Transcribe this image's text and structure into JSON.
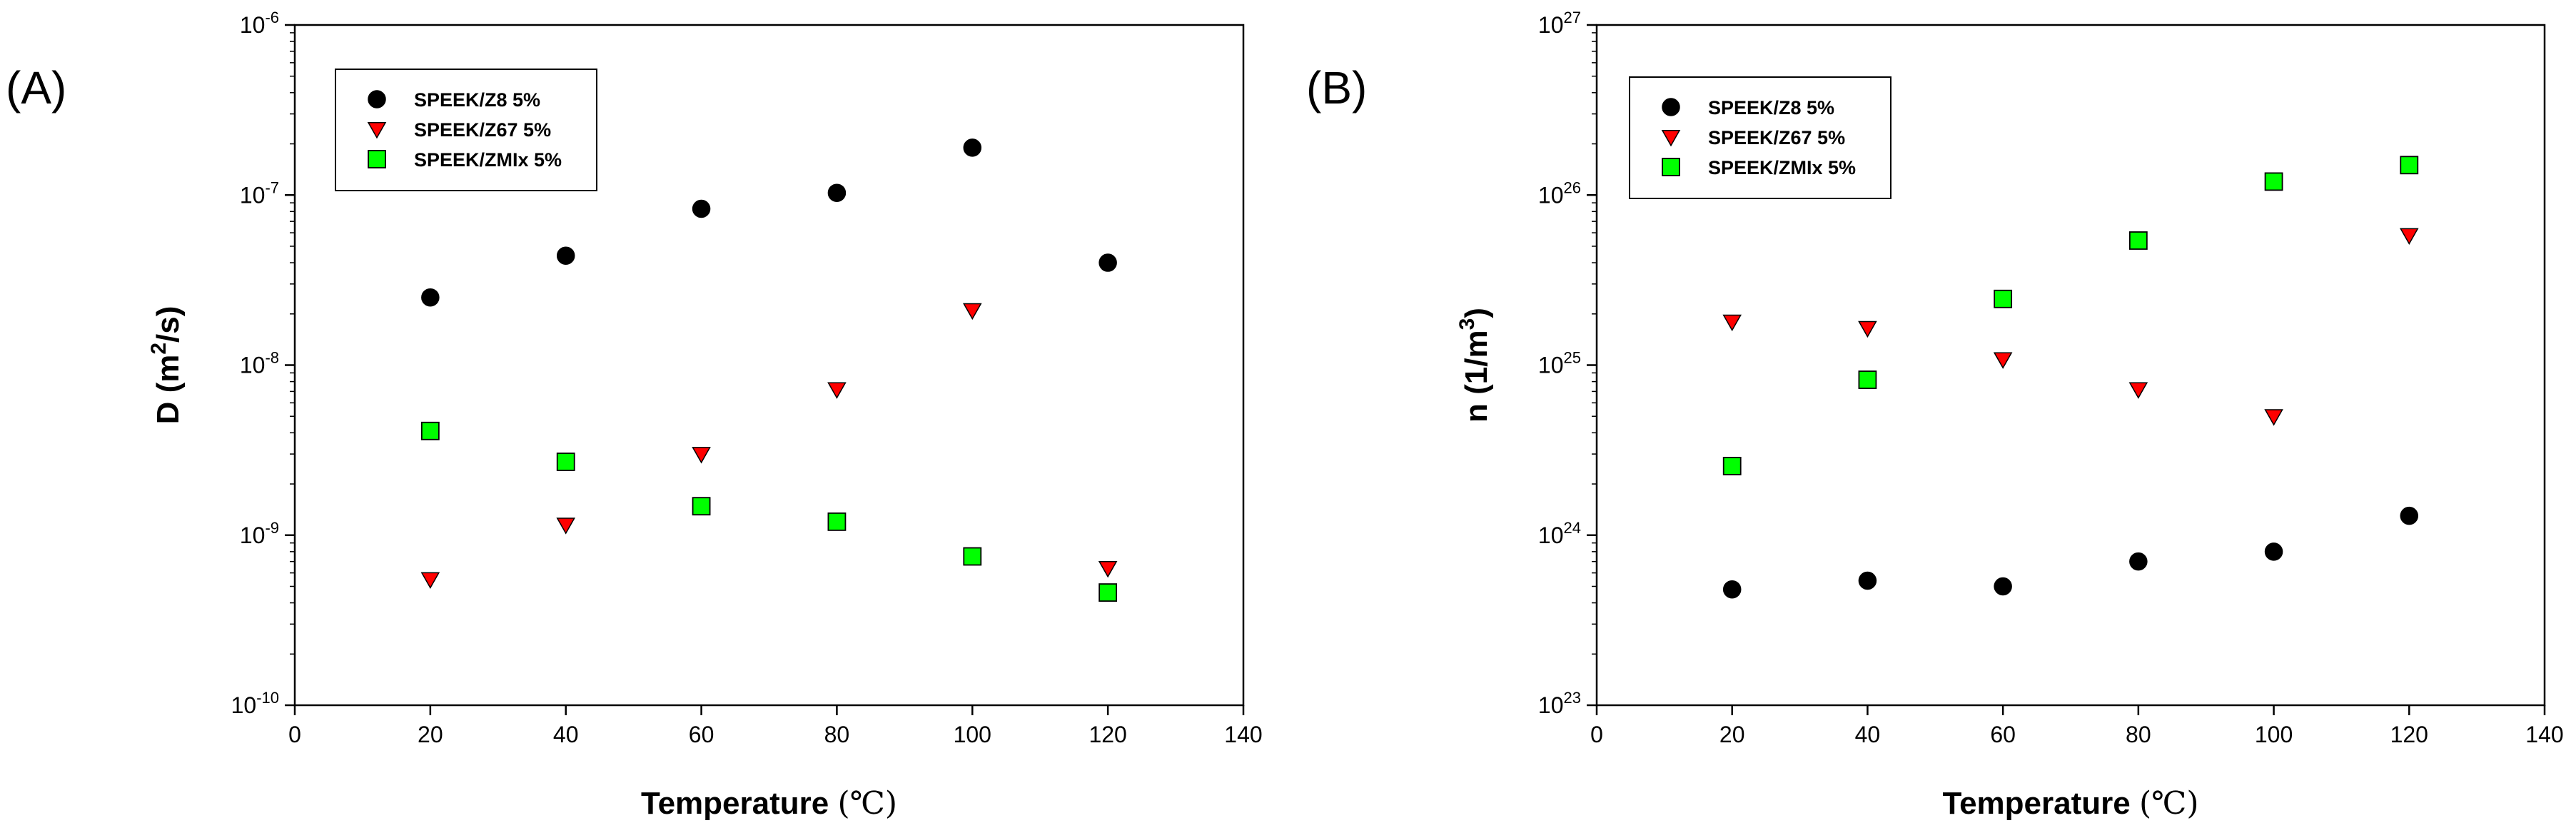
{
  "chart_data": [
    {
      "type": "scatter",
      "panel_label": "(A)",
      "xlabel": "Temperature",
      "xlabel_unit": "(℃)",
      "ylabel_base": "D (m",
      "ylabel_sup": "2",
      "ylabel_tail": "/s)",
      "yscale": "log",
      "xlim": [
        0,
        140
      ],
      "ylim_exp": [
        -10,
        -6
      ],
      "x_ticks": [
        "0",
        "20",
        "40",
        "60",
        "80",
        "100",
        "120",
        "140"
      ],
      "y_ticks": [
        {
          "base": "10",
          "exp": "-10"
        },
        {
          "base": "10",
          "exp": "-9"
        },
        {
          "base": "10",
          "exp": "-8"
        },
        {
          "base": "10",
          "exp": "-7"
        },
        {
          "base": "10",
          "exp": "-6"
        }
      ],
      "legend": {
        "position": "top-left"
      },
      "x": [
        20,
        40,
        60,
        80,
        100,
        120
      ],
      "series": [
        {
          "name": "SPEEK/Z8 5%",
          "marker": "circle",
          "color": "#000000",
          "values": [
            2.5e-08,
            4.4e-08,
            8.3e-08,
            1.03e-07,
            1.9e-07,
            4e-08
          ]
        },
        {
          "name": "SPEEK/Z67 5%",
          "marker": "triangle-down",
          "color": "#ff0000",
          "values": [
            5.5e-10,
            1.15e-09,
            3e-09,
            7.2e-09,
            2.1e-08,
            6.4e-10
          ]
        },
        {
          "name": "SPEEK/ZMIx 5%",
          "marker": "square",
          "color": "#00ff00",
          "values": [
            4.1e-09,
            2.7e-09,
            1.48e-09,
            1.2e-09,
            7.5e-10,
            4.6e-10
          ]
        }
      ]
    },
    {
      "type": "scatter",
      "panel_label": "(B)",
      "xlabel": "Temperature",
      "xlabel_unit": "(℃)",
      "ylabel_base": "n (1/m",
      "ylabel_sup": "3",
      "ylabel_tail": ")",
      "yscale": "log",
      "xlim": [
        0,
        140
      ],
      "ylim_exp": [
        23,
        27
      ],
      "x_ticks": [
        "0",
        "20",
        "40",
        "60",
        "80",
        "100",
        "120",
        "140"
      ],
      "y_ticks": [
        {
          "base": "10",
          "exp": "23"
        },
        {
          "base": "10",
          "exp": "24"
        },
        {
          "base": "10",
          "exp": "25"
        },
        {
          "base": "10",
          "exp": "26"
        },
        {
          "base": "10",
          "exp": "27"
        }
      ],
      "legend": {
        "position": "top-left"
      },
      "x": [
        20,
        40,
        60,
        80,
        100,
        120
      ],
      "series": [
        {
          "name": "SPEEK/Z8 5%",
          "marker": "circle",
          "color": "#000000",
          "values": [
            4.8e+23,
            5.4e+23,
            5e+23,
            7e+23,
            8e+23,
            1.3e+24
          ]
        },
        {
          "name": "SPEEK/Z67 5%",
          "marker": "triangle-down",
          "color": "#ff0000",
          "values": [
            1.8e+25,
            1.65e+25,
            1.08e+25,
            7.2e+24,
            5e+24,
            5.8e+25
          ]
        },
        {
          "name": "SPEEK/ZMIx 5%",
          "marker": "square",
          "color": "#00ff00",
          "values": [
            2.55e+24,
            8.2e+24,
            2.45e+25,
            5.4e+25,
            1.2e+26,
            1.5e+26
          ]
        }
      ]
    }
  ]
}
